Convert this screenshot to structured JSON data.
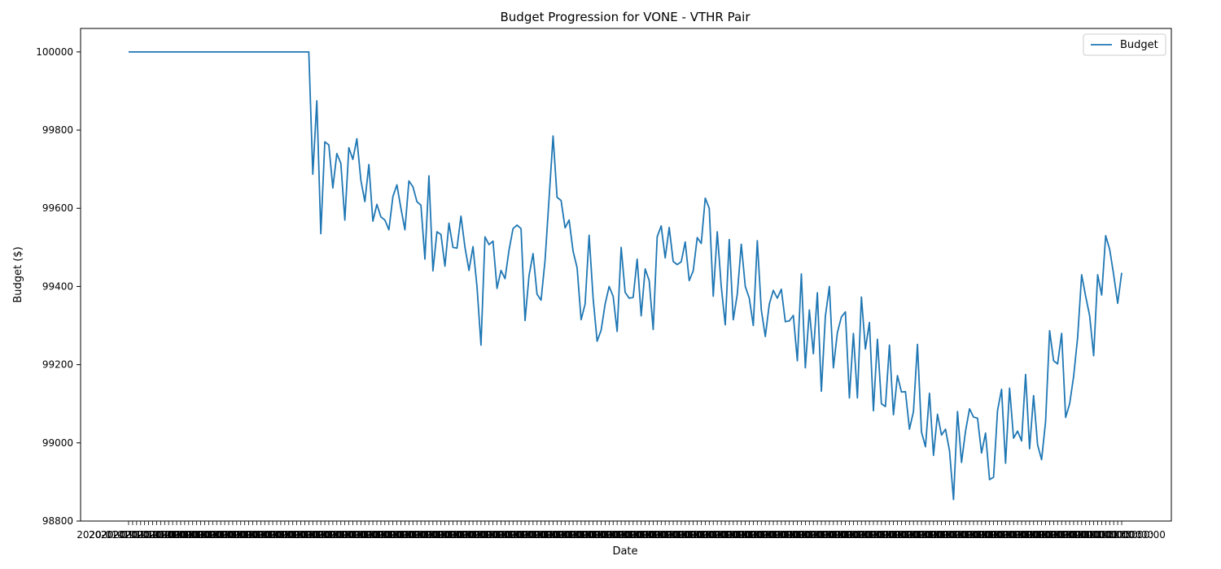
{
  "chart_data": {
    "type": "line",
    "title": "Budget Progression for VONE - VTHR Pair",
    "xlabel": "Date",
    "ylabel": "Budget ($)",
    "ylim": [
      98800,
      100060
    ],
    "yticks": [
      98800,
      99000,
      99200,
      99400,
      99600,
      99800,
      100000
    ],
    "grid": false,
    "legend_position": "top-right",
    "line_color": "#1f77b4",
    "x_tick_label_text": "2020-01-01 00:00:00",
    "series": [
      {
        "name": "Budget",
        "values": [
          100000,
          100000,
          100000,
          100000,
          100000,
          100000,
          100000,
          100000,
          100000,
          100000,
          100000,
          100000,
          100000,
          100000,
          100000,
          100000,
          100000,
          100000,
          100000,
          100000,
          100000,
          100000,
          100000,
          100000,
          100000,
          100000,
          100000,
          100000,
          100000,
          100000,
          100000,
          100000,
          100000,
          100000,
          100000,
          100000,
          100000,
          100000,
          100000,
          100000,
          100000,
          100000,
          100000,
          100000,
          100000,
          100000,
          99687,
          99875,
          99535,
          99770,
          99762,
          99652,
          99740,
          99715,
          99570,
          99755,
          99725,
          99778,
          99672,
          99617,
          99712,
          99567,
          99610,
          99578,
          99570,
          99545,
          99630,
          99660,
          99600,
          99545,
          99670,
          99655,
          99617,
          99608,
          99470,
          99683,
          99440,
          99540,
          99533,
          99452,
          99562,
          99500,
          99498,
          99580,
          99500,
          99441,
          99502,
          99400,
          99250,
          99527,
          99507,
          99516,
          99395,
          99441,
          99420,
          99493,
          99548,
          99557,
          99548,
          99313,
          99428,
          99484,
          99380,
          99365,
          99467,
          99625,
          99785,
          99628,
          99620,
          99550,
          99570,
          99490,
          99448,
          99315,
          99355,
          99531,
          99370,
          99260,
          99288,
          99355,
          99400,
          99375,
          99285,
          99500,
          99385,
          99370,
          99372,
          99470,
          99325,
          99445,
          99415,
          99290,
          99527,
          99555,
          99473,
          99551,
          99464,
          99456,
          99463,
          99514,
          99415,
          99440,
          99525,
          99510,
          99626,
          99600,
          99375,
          99540,
          99400,
          99302,
          99520,
          99315,
          99380,
          99508,
          99400,
          99370,
          99300,
          99517,
          99340,
          99272,
          99355,
          99390,
          99370,
          99393,
          99310,
          99312,
          99326,
          99210,
          99432,
          99192,
          99340,
          99228,
          99384,
          99132,
          99324,
          99400,
          99192,
          99282,
          99322,
          99335,
          99115,
          99280,
          99115,
          99373,
          99240,
          99308,
          99082,
          99265,
          99100,
          99093,
          99250,
          99072,
          99172,
          99130,
          99131,
          99035,
          99080,
          99252,
          99028,
          98990,
          99127,
          98968,
          99073,
          99020,
          99035,
          98980,
          98855,
          99080,
          98950,
          99030,
          99087,
          99066,
          99063,
          98974,
          99025,
          98906,
          98912,
          99083,
          99137,
          98948,
          99140,
          99012,
          99030,
          99005,
          99175,
          98985,
          99121,
          98995,
          98957,
          99055,
          99287,
          99210,
          99202,
          99280,
          99065,
          99100,
          99170,
          99270,
          99430,
          99375,
          99325,
          99223,
          99430,
          99378,
          99530,
          99495,
          99430,
          99357,
          99435
        ]
      }
    ]
  }
}
